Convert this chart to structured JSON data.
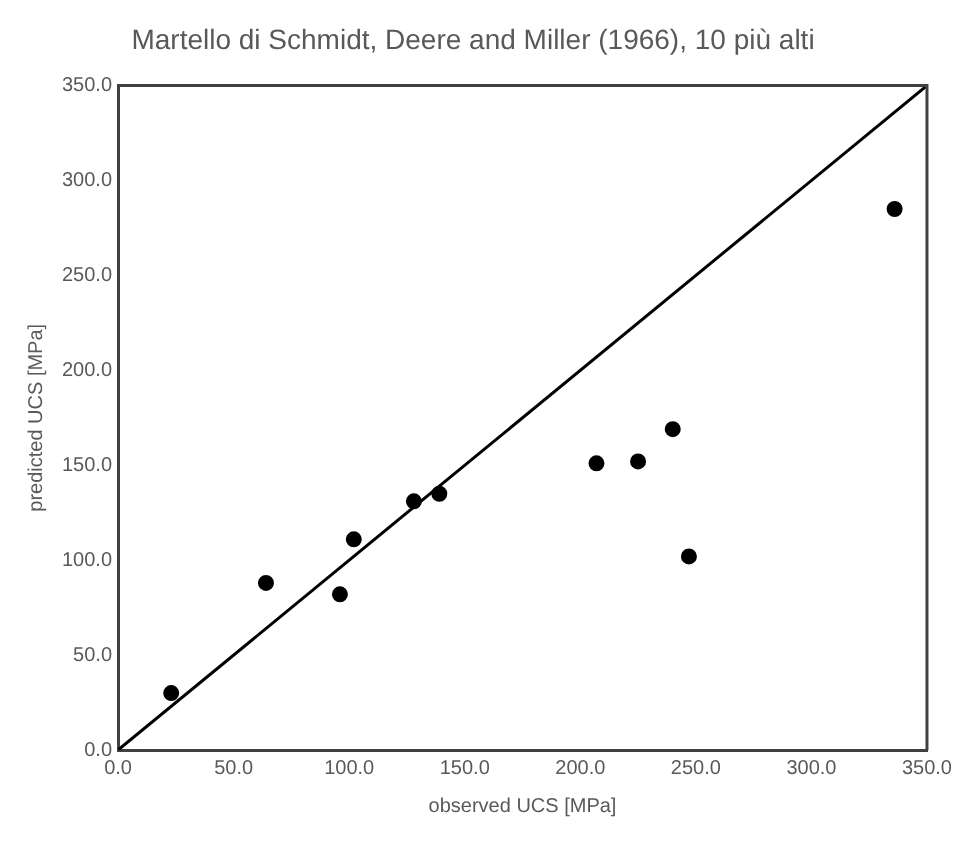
{
  "chart_data": {
    "type": "scatter",
    "title": "Martello di Schmidt, Deere and Miller (1966), 10 più alti",
    "xlabel": "observed UCS [MPa]",
    "ylabel": "predicted UCS [MPa]",
    "xlim": [
      0,
      350
    ],
    "ylim": [
      0,
      350
    ],
    "xticks": [
      {
        "value": 0,
        "label": "0.0"
      },
      {
        "value": 50,
        "label": "50.0"
      },
      {
        "value": 100,
        "label": "100.0"
      },
      {
        "value": 150,
        "label": "150.0"
      },
      {
        "value": 200,
        "label": "200.0"
      },
      {
        "value": 250,
        "label": "250.0"
      },
      {
        "value": 300,
        "label": "300.0"
      },
      {
        "value": 350,
        "label": "350.0"
      }
    ],
    "yticks": [
      {
        "value": 0,
        "label": "0.0"
      },
      {
        "value": 50,
        "label": "50.0"
      },
      {
        "value": 100,
        "label": "100.0"
      },
      {
        "value": 150,
        "label": "150.0"
      },
      {
        "value": 200,
        "label": "200.0"
      },
      {
        "value": 250,
        "label": "250.0"
      },
      {
        "value": 300,
        "label": "300.0"
      },
      {
        "value": 350,
        "label": "350.0"
      }
    ],
    "grid": false,
    "legend": false,
    "series": [
      {
        "color": "#000000",
        "marker": "circle",
        "x": [
          23,
          64,
          96,
          102,
          128,
          139,
          207,
          225,
          240,
          247,
          336
        ],
        "values": [
          30,
          88,
          82,
          111,
          131,
          135,
          151,
          152,
          169,
          102,
          285
        ]
      },
      {
        "type": "line",
        "color": "#000000",
        "marker": "none",
        "line_style": "solid",
        "x": [
          0,
          350
        ],
        "values": [
          0,
          350
        ]
      }
    ]
  }
}
